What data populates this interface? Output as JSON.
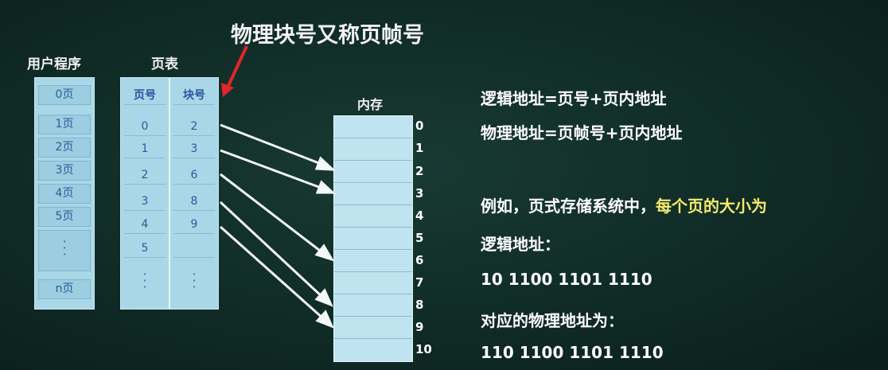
{
  "title": "物理块号又称页帧号",
  "user_program": {
    "heading": "用户程序",
    "pages": [
      "0页",
      "1页",
      "2页",
      "3页",
      "4页",
      "5页"
    ],
    "last_page": "n页"
  },
  "page_table": {
    "heading": "页表",
    "col_page": "页号",
    "col_block": "块号",
    "rows": [
      {
        "page": "0",
        "block": "2"
      },
      {
        "page": "1",
        "block": "3"
      },
      {
        "page": "2",
        "block": "6"
      },
      {
        "page": "3",
        "block": "8"
      },
      {
        "page": "4",
        "block": "9"
      },
      {
        "page": "5",
        "block": ""
      }
    ]
  },
  "memory": {
    "heading": "内存",
    "labels": [
      "0",
      "1",
      "2",
      "3",
      "4",
      "5",
      "6",
      "7",
      "8",
      "9",
      "10"
    ]
  },
  "text": {
    "logical_formula": "逻辑地址=页号+页内地址",
    "physical_formula": "物理地址=页帧号+页内地址",
    "example_prefix": "例如，页式存储系统中，",
    "example_highlight": "每个页的大小为",
    "logical_label": "逻辑地址：",
    "logical_value": "10 1100 1101 1110",
    "physical_label": "对应的物理地址为：",
    "physical_value": "110 1100 1101 1110"
  },
  "colors": {
    "background": "#102b26",
    "cell": "#a9d7e8",
    "cell_text": "#2b5c99",
    "highlight": "#f4ea6b",
    "annotation_arrow": "#e0262a"
  }
}
